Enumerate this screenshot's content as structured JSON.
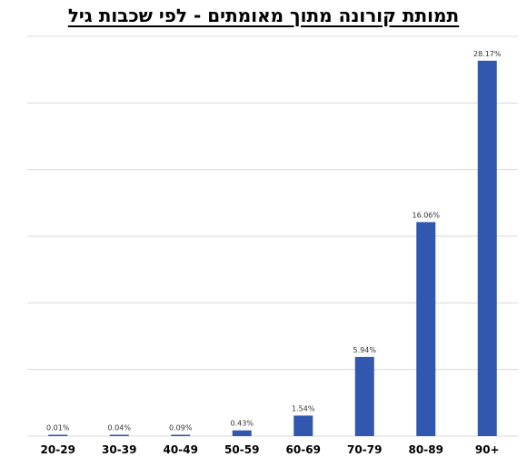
{
  "chart_data": {
    "type": "bar",
    "title": "תמותת קורונה מתוך מאומתים - לפי שכבות גיל",
    "xlabel": "",
    "ylabel": "",
    "categories": [
      "20-29",
      "30-39",
      "40-49",
      "50-59",
      "60-69",
      "70-79",
      "80-89",
      "90+"
    ],
    "values": [
      0.01,
      0.04,
      0.09,
      0.43,
      1.54,
      5.94,
      16.06,
      28.17
    ],
    "data_labels": [
      "0.01%",
      "0.04%",
      "0.09%",
      "0.43%",
      "1.54%",
      "5.94%",
      "16.06%",
      "28.17%"
    ],
    "ylim": [
      0,
      30
    ],
    "grid": true,
    "legend": "none",
    "bar_color": "#3157AE"
  }
}
